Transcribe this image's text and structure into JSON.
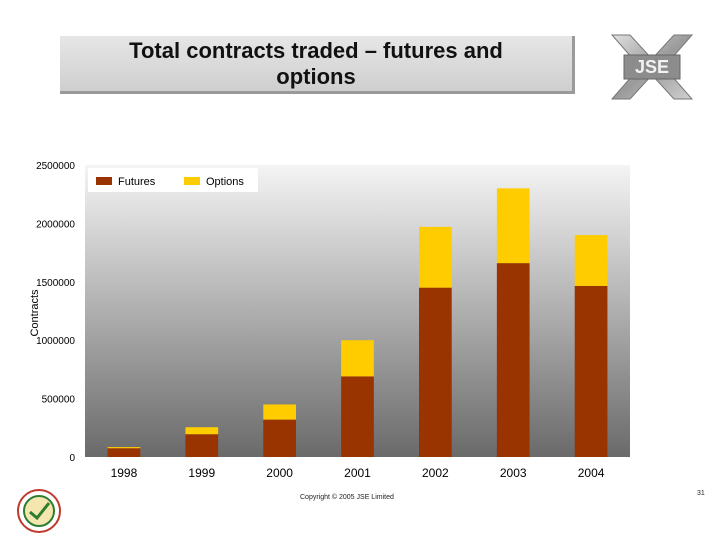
{
  "slide": {
    "title": "Total contracts traded – futures and options",
    "copyright": "Copyright © 2005 JSE Limited",
    "page_number": "31",
    "logo_text": "JSE"
  },
  "chart_data": {
    "type": "bar",
    "stacked": true,
    "categories": [
      "1998",
      "1999",
      "2000",
      "2001",
      "2002",
      "2003",
      "2004"
    ],
    "series": [
      {
        "name": "Futures",
        "color": "#993300",
        "values": [
          75000,
          195000,
          320000,
          690000,
          1450000,
          1660000,
          1465000
        ]
      },
      {
        "name": "Options",
        "color": "#FFCC00",
        "values": [
          10000,
          60000,
          130000,
          310000,
          520000,
          640000,
          435000
        ]
      }
    ],
    "ylabel": "Contracts",
    "xlabel": "",
    "ylim": [
      0,
      2500000
    ],
    "yticks": [
      0,
      500000,
      1000000,
      1500000,
      2000000,
      2500000
    ],
    "ytick_labels": [
      "0",
      "500000",
      "1000000",
      "1500000",
      "2000000",
      "2500000"
    ],
    "legend_position": "top-left",
    "grid": false
  }
}
